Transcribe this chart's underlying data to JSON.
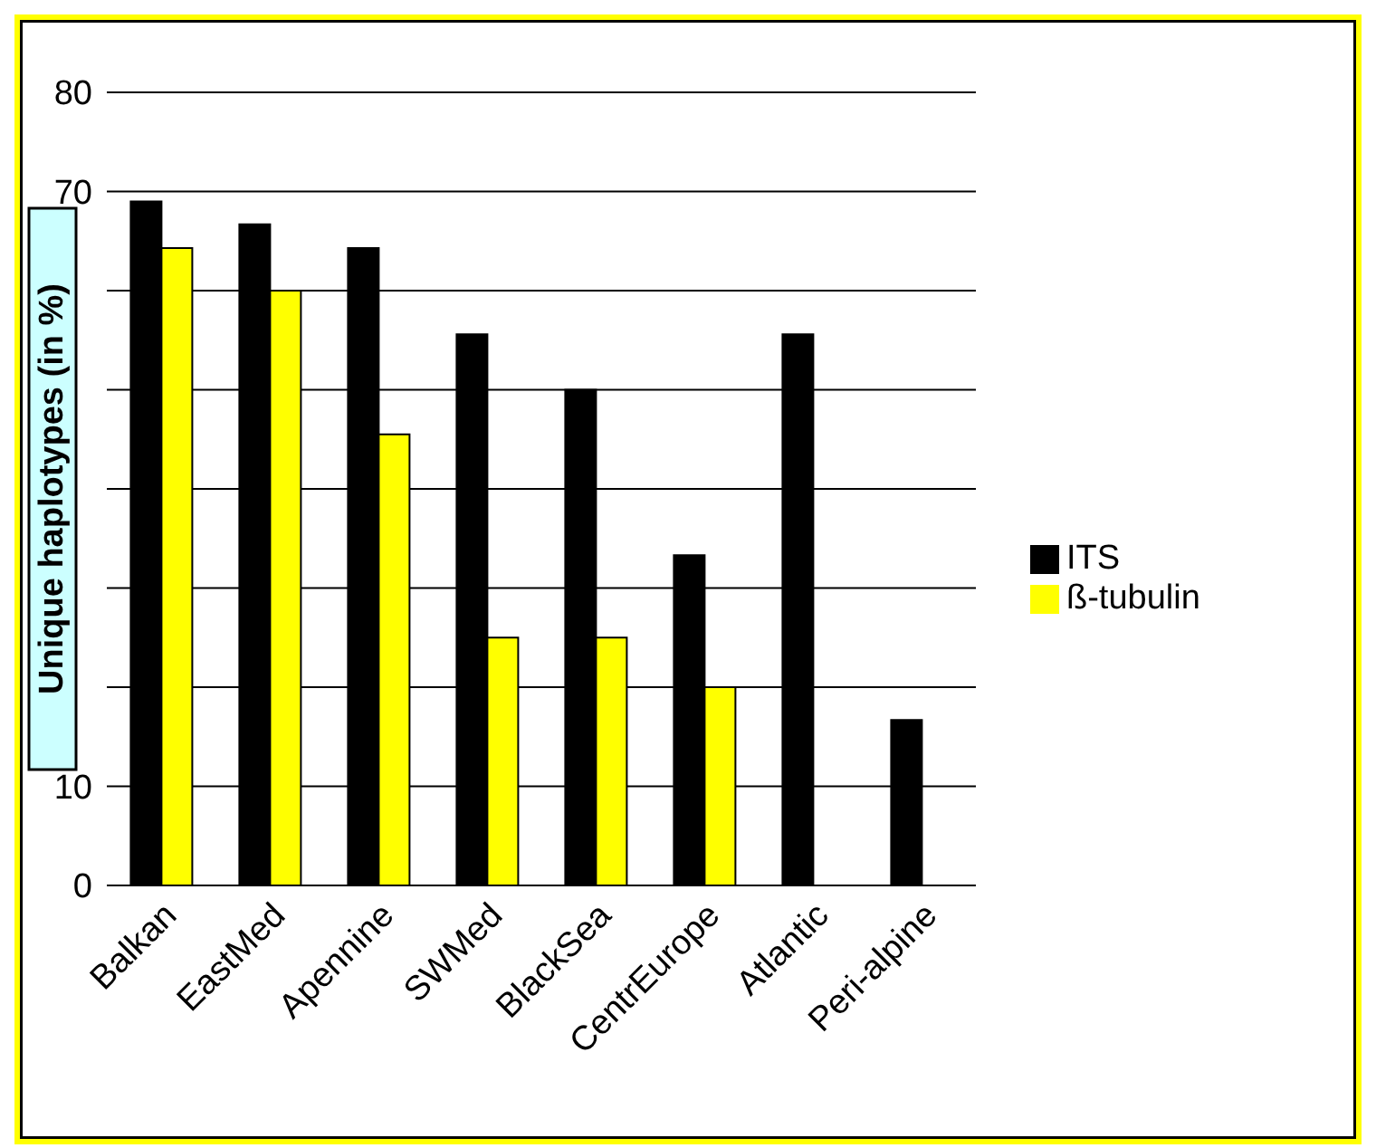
{
  "chart_data": {
    "type": "bar",
    "ylabel": "Unique  haplotypes (in %)",
    "categories": [
      "Balkan",
      "EastMed",
      "Apennine",
      "SWMed",
      "BlackSea",
      "CentrEurope",
      "Atlantic",
      "Peri-alpine"
    ],
    "series": [
      {
        "name": "ITS",
        "color": "#000000",
        "values": [
          69,
          66.7,
          64.3,
          55.6,
          50,
          33.3,
          55.6,
          16.7
        ]
      },
      {
        "name": "ß-tubulin",
        "color": "#ffff00",
        "values": [
          64.3,
          60,
          45.5,
          25,
          25,
          20,
          null,
          null
        ]
      }
    ],
    "ylim": [
      0,
      80
    ],
    "yticks": [
      0,
      10,
      {
        "value": 20,
        "label": null
      },
      {
        "value": 30,
        "label": null
      },
      {
        "value": 40,
        "label": null
      },
      {
        "value": 50,
        "label": null
      },
      {
        "value": 60,
        "label": null
      },
      70,
      80
    ],
    "grid": "y",
    "legend": "right"
  }
}
